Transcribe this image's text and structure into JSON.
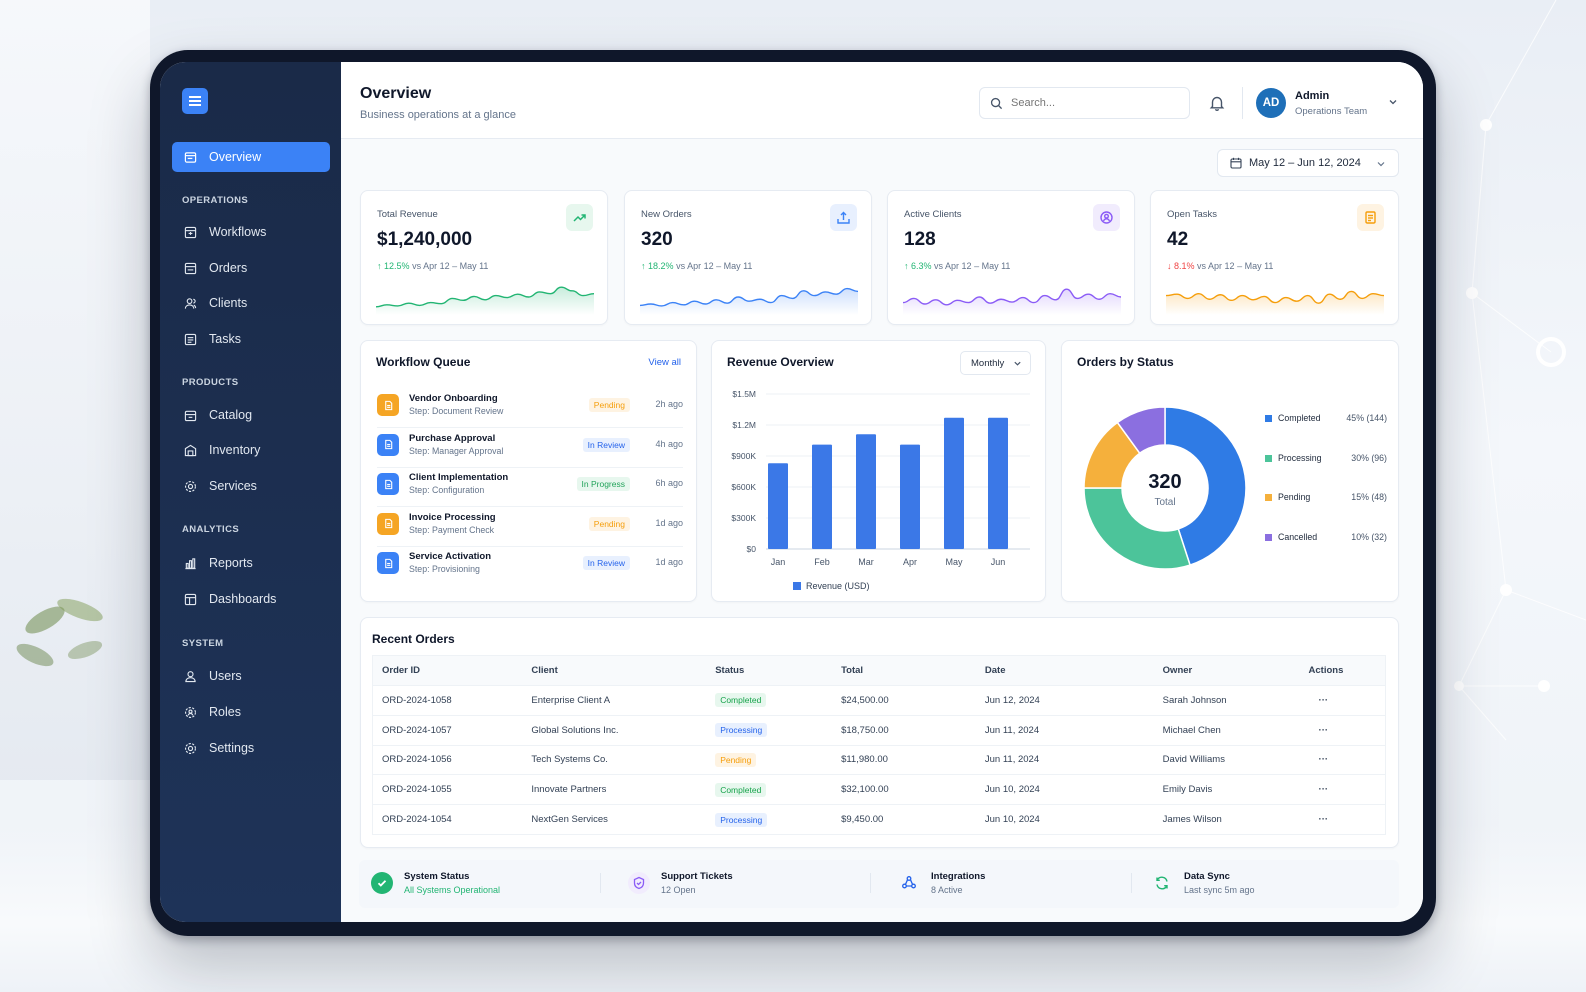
{
  "header": {
    "title": "Overview",
    "subtitle": "Business operations at a glance"
  },
  "search": {
    "placeholder": "Search..."
  },
  "user": {
    "initials": "AD",
    "name": "Admin",
    "role": "Operations Team"
  },
  "date_range": "May 12 – Jun 12, 2024",
  "sidebar": {
    "active": "Overview",
    "sections": [
      {
        "label": "OPERATIONS",
        "items": [
          "Workflows",
          "Orders",
          "Clients",
          "Tasks"
        ]
      },
      {
        "label": "PRODUCTS",
        "items": [
          "Catalog",
          "Inventory",
          "Services"
        ]
      },
      {
        "label": "ANALYTICS",
        "items": [
          "Reports",
          "Dashboards"
        ]
      },
      {
        "label": "SYSTEM",
        "items": [
          "Users",
          "Roles",
          "Settings"
        ]
      }
    ]
  },
  "kpis": [
    {
      "label": "Total Revenue",
      "value": "$1,240,000",
      "delta": "12.5%",
      "direction": "up",
      "period": "vs Apr 12 – May 11",
      "color": "#22b573",
      "icon": "trend-up-icon",
      "level": [
        0.15,
        0.22,
        0.18,
        0.28,
        0.2,
        0.3,
        0.26,
        0.45,
        0.38,
        0.52,
        0.4,
        0.55,
        0.48,
        0.6,
        0.5,
        0.68,
        0.62,
        0.85,
        0.72,
        0.55,
        0.62
      ]
    },
    {
      "label": "New Orders",
      "value": "320",
      "delta": "18.2%",
      "direction": "up",
      "period": "vs Apr 12 – May 11",
      "color": "#3b82f6",
      "icon": "tray-upload-icon",
      "level": [
        0.2,
        0.25,
        0.18,
        0.3,
        0.22,
        0.35,
        0.25,
        0.4,
        0.28,
        0.5,
        0.35,
        0.42,
        0.3,
        0.55,
        0.45,
        0.72,
        0.55,
        0.68,
        0.6,
        0.8,
        0.7
      ]
    },
    {
      "label": "Active Clients",
      "value": "128",
      "delta": "6.3%",
      "direction": "up",
      "period": "vs Apr 12 – May 11",
      "color": "#8b5cf6",
      "icon": "users-circle-icon",
      "level": [
        0.3,
        0.45,
        0.25,
        0.4,
        0.22,
        0.38,
        0.3,
        0.5,
        0.28,
        0.42,
        0.32,
        0.48,
        0.3,
        0.55,
        0.4,
        0.78,
        0.45,
        0.6,
        0.42,
        0.62,
        0.5
      ]
    },
    {
      "label": "Open Tasks",
      "value": "42",
      "delta": "8.1%",
      "direction": "down",
      "period": "vs Apr 12 – May 11",
      "color": "#f59e0b",
      "icon": "task-list-icon",
      "level": [
        0.55,
        0.6,
        0.45,
        0.62,
        0.42,
        0.58,
        0.38,
        0.55,
        0.4,
        0.52,
        0.3,
        0.48,
        0.35,
        0.55,
        0.28,
        0.6,
        0.42,
        0.7,
        0.45,
        0.62,
        0.55
      ]
    }
  ],
  "workflow_queue": {
    "title": "Workflow Queue",
    "link": "View all",
    "items": [
      {
        "name": "Vendor Onboarding",
        "step": "Step: Document Review",
        "status": "Pending",
        "time": "2h ago",
        "kind": "pending",
        "color": "#f5a524"
      },
      {
        "name": "Purchase Approval",
        "step": "Step: Manager Approval",
        "status": "In Review",
        "time": "4h ago",
        "kind": "review",
        "color": "#3b82f6"
      },
      {
        "name": "Client Implementation",
        "step": "Step: Configuration",
        "status": "In Progress",
        "time": "6h ago",
        "kind": "progress",
        "color": "#3b82f6"
      },
      {
        "name": "Invoice Processing",
        "step": "Step: Payment Check",
        "status": "Pending",
        "time": "1d ago",
        "kind": "pending",
        "color": "#f5a524"
      },
      {
        "name": "Service Activation",
        "step": "Step: Provisioning",
        "status": "In Review",
        "time": "1d ago",
        "kind": "review",
        "color": "#3b82f6"
      }
    ]
  },
  "revenue": {
    "title": "Revenue Overview",
    "period": "Monthly",
    "chart_data": {
      "type": "bar",
      "categories": [
        "Jan",
        "Feb",
        "Mar",
        "Apr",
        "May",
        "Jun"
      ],
      "series": [
        {
          "name": "Revenue (USD)",
          "values": [
            830000,
            1010000,
            1110000,
            1010000,
            1270000,
            1270000
          ],
          "color": "#3b78e7"
        }
      ],
      "yticks": [
        "$0",
        "$300K",
        "$600K",
        "$900K",
        "$1.2M",
        "$1.5M"
      ],
      "ylim": [
        0,
        1500000
      ],
      "grid": true,
      "legend": "bottom"
    }
  },
  "orders_status": {
    "title": "Orders by Status",
    "center_value": "320",
    "center_label": "Total",
    "chart_data": {
      "type": "pie",
      "slices": [
        {
          "label": "Completed",
          "value": 144,
          "display": "45% (144)",
          "color": "#2f7be5"
        },
        {
          "label": "Processing",
          "value": 96,
          "display": "30% (96)",
          "color": "#4cc49a"
        },
        {
          "label": "Pending",
          "value": 48,
          "display": "15% (48)",
          "color": "#f5b03c"
        },
        {
          "label": "Cancelled",
          "value": 32,
          "display": "10% (32)",
          "color": "#8b6fe0"
        }
      ],
      "legend": "right"
    }
  },
  "recent_orders": {
    "title": "Recent Orders",
    "columns": [
      "Order ID",
      "Client",
      "Status",
      "Total",
      "Date",
      "Owner",
      "Actions"
    ],
    "rows": [
      {
        "id": "ORD-2024-1058",
        "client": "Enterprise Client A",
        "status": "Completed",
        "kind": "completed",
        "total": "$24,500.00",
        "date": "Jun 12, 2024",
        "owner": "Sarah Johnson",
        "actions": "···"
      },
      {
        "id": "ORD-2024-1057",
        "client": "Global Solutions Inc.",
        "status": "Processing",
        "kind": "processing",
        "total": "$18,750.00",
        "date": "Jun 11, 2024",
        "owner": "Michael Chen",
        "actions": "···"
      },
      {
        "id": "ORD-2024-1056",
        "client": "Tech Systems Co.",
        "status": "Pending",
        "kind": "pending",
        "total": "$11,980.00",
        "date": "Jun 11, 2024",
        "owner": "David Williams",
        "actions": "···"
      },
      {
        "id": "ORD-2024-1055",
        "client": "Innovate Partners",
        "status": "Completed",
        "kind": "completed",
        "total": "$32,100.00",
        "date": "Jun 10, 2024",
        "owner": "Emily Davis",
        "actions": "···"
      },
      {
        "id": "ORD-2024-1054",
        "client": "NextGen Services",
        "status": "Processing",
        "kind": "processing",
        "total": "$9,450.00",
        "date": "Jun 10, 2024",
        "owner": "James Wilson",
        "actions": "···"
      }
    ]
  },
  "status_bar": [
    {
      "title": "System Status",
      "sub": "All Systems Operational",
      "icon": "check-circle-icon",
      "sub_color": "#22b573"
    },
    {
      "title": "Support Tickets",
      "sub": "12 Open",
      "icon": "ticket-shield-icon",
      "sub_color": "#64748b"
    },
    {
      "title": "Integrations",
      "sub": "8 Active",
      "icon": "integrations-icon",
      "sub_color": "#64748b"
    },
    {
      "title": "Data Sync",
      "sub": "Last sync 5m ago",
      "icon": "sync-icon",
      "sub_color": "#64748b"
    }
  ]
}
